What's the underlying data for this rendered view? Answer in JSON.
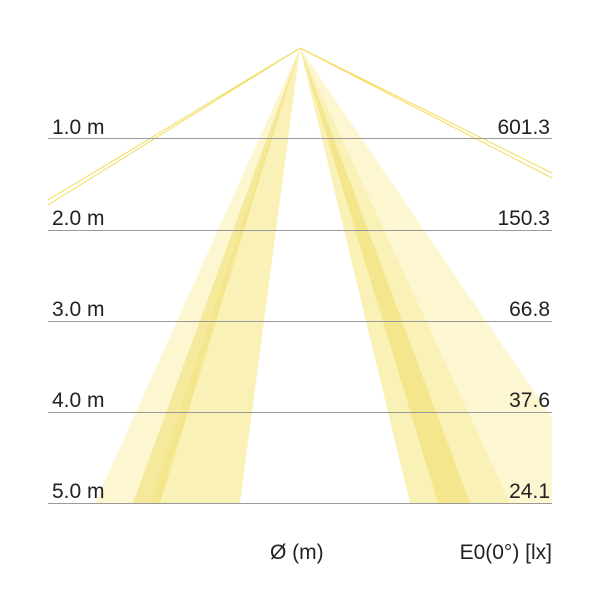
{
  "rows": [
    {
      "distance": "1.0 m",
      "illuminance": "601.3"
    },
    {
      "distance": "2.0 m",
      "illuminance": "150.3"
    },
    {
      "distance": "3.0 m",
      "illuminance": "66.8"
    },
    {
      "distance": "4.0 m",
      "illuminance": "37.6"
    },
    {
      "distance": "5.0 m",
      "illuminance": "24.1"
    }
  ],
  "footer": {
    "diameter_label": "Ø (m)",
    "illuminance_label": "E0(0°) [lx]"
  },
  "colors": {
    "beam": "#f5e67a",
    "beam_dark": "#ecd84a",
    "gridline": "#9a9a9a",
    "text": "#222222"
  }
}
